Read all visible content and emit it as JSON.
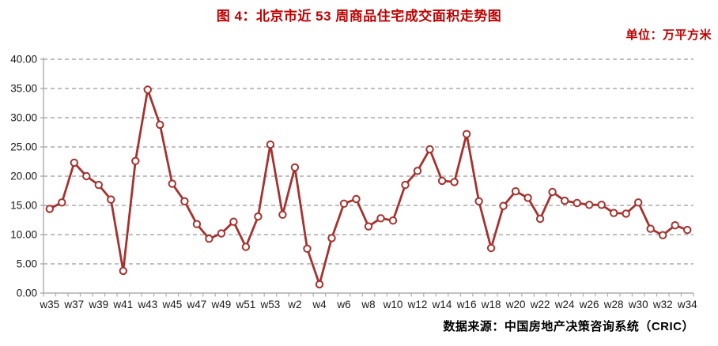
{
  "header": {
    "title": "图 4：北京市近 53 周商品住宅成交面积走势图",
    "unit_label": "单位：万平方米"
  },
  "footer": {
    "source_label": "数据来源：中国房地产决策咨询系统（CRIC）"
  },
  "colors": {
    "title_red": "#C00000",
    "unit_red": "#C00000",
    "line_red": "#A5322E",
    "marker_fill": "#FFFFFF",
    "gridline_gray": "#999999",
    "axis_gray": "#ADADAD",
    "tick_label_black": "#1A1A1A",
    "source_black": "#000000",
    "background": "#FFFFFF"
  },
  "chart_data": {
    "type": "line",
    "title": "图 4：北京市近 53 周商品住宅成交面积走势图",
    "unit": "万平方米",
    "legend": "none",
    "grid": "horizontal-dashed",
    "marker": "open-circle",
    "ylim": [
      0,
      40
    ],
    "y_tick_step": 5,
    "y_tick_labels": [
      "0.00",
      "5.00",
      "10.00",
      "15.00",
      "20.00",
      "25.00",
      "30.00",
      "35.00",
      "40.00"
    ],
    "x_label_every": 2,
    "visible_x_tick_labels": [
      "w35",
      "w37",
      "w39",
      "w41",
      "w43",
      "w45",
      "w47",
      "w49",
      "w51",
      "w53",
      "w2",
      "w4",
      "w6",
      "w8",
      "w10",
      "w12",
      "w14",
      "w16",
      "w18",
      "w20",
      "w22",
      "w24",
      "w26",
      "w28",
      "w30",
      "w32",
      "w34"
    ],
    "categories": [
      "w35",
      "w36",
      "w37",
      "w38",
      "w39",
      "w40",
      "w41",
      "w42",
      "w43",
      "w44",
      "w45",
      "w46",
      "w47",
      "w48",
      "w49",
      "w50",
      "w51",
      "w52",
      "w53",
      "w1",
      "w2",
      "w3",
      "w4",
      "w5",
      "w6",
      "w7",
      "w8",
      "w9",
      "w10",
      "w11",
      "w12",
      "w13",
      "w14",
      "w15",
      "w16",
      "w17",
      "w18",
      "w19",
      "w20",
      "w21",
      "w22",
      "w23",
      "w24",
      "w25",
      "w26",
      "w27",
      "w28",
      "w29",
      "w30",
      "w31",
      "w32",
      "w33",
      "w34"
    ],
    "values": [
      14.4,
      15.5,
      22.3,
      20.0,
      18.5,
      16.0,
      3.8,
      22.6,
      34.8,
      28.8,
      18.7,
      15.7,
      11.8,
      9.3,
      10.2,
      12.2,
      7.9,
      13.1,
      25.4,
      13.4,
      21.5,
      7.6,
      1.5,
      9.4,
      15.3,
      16.1,
      11.4,
      12.8,
      12.4,
      18.5,
      20.9,
      24.6,
      19.2,
      19.0,
      27.2,
      15.7,
      7.7,
      14.9,
      17.4,
      16.3,
      12.7,
      17.3,
      15.8,
      15.4,
      15.1,
      15.1,
      13.7,
      13.6,
      15.5,
      11.0,
      9.9,
      11.6,
      10.8
    ]
  }
}
